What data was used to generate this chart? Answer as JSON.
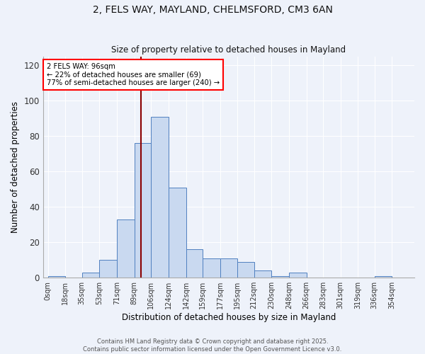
{
  "title_line1": "2, FELS WAY, MAYLAND, CHELMSFORD, CM3 6AN",
  "title_line2": "Size of property relative to detached houses in Mayland",
  "xlabel": "Distribution of detached houses by size in Mayland",
  "ylabel": "Number of detached properties",
  "bar_labels": [
    "0sqm",
    "18sqm",
    "35sqm",
    "53sqm",
    "71sqm",
    "89sqm",
    "106sqm",
    "124sqm",
    "142sqm",
    "159sqm",
    "177sqm",
    "195sqm",
    "212sqm",
    "230sqm",
    "248sqm",
    "266sqm",
    "283sqm",
    "301sqm",
    "319sqm",
    "336sqm",
    "354sqm"
  ],
  "bar_values": [
    1,
    0,
    3,
    10,
    33,
    76,
    91,
    51,
    16,
    11,
    11,
    9,
    4,
    1,
    3,
    0,
    0,
    0,
    0,
    1,
    0
  ],
  "bar_color": "#c9d9f0",
  "bar_edge_color": "#5080c0",
  "background_color": "#eef2fa",
  "grid_color": "#ffffff",
  "ylim": [
    0,
    125
  ],
  "yticks": [
    0,
    20,
    40,
    60,
    80,
    100,
    120
  ],
  "property_label": "2 FELS WAY: 96sqm",
  "annotation_line1": "← 22% of detached houses are smaller (69)",
  "annotation_line2": "77% of semi-detached houses are larger (240) →",
  "red_line_x": 96,
  "footer_line1": "Contains HM Land Registry data © Crown copyright and database right 2025.",
  "footer_line2": "Contains public sector information licensed under the Open Government Licence v3.0."
}
